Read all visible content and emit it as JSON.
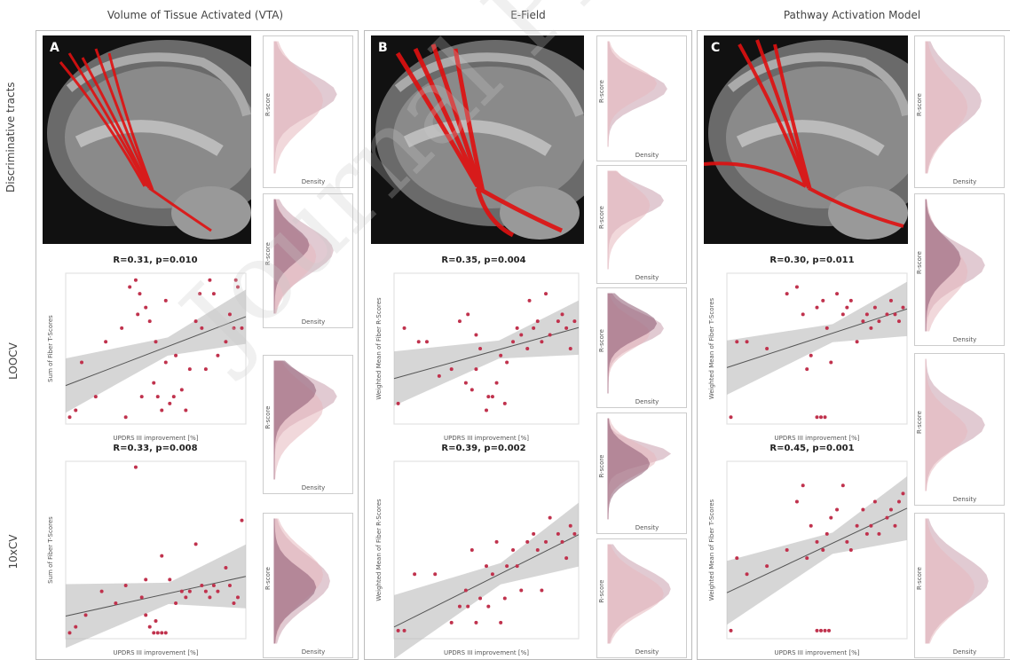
{
  "columns": [
    {
      "title": "Volume of Tissue Activated (VTA)",
      "letter": "A"
    },
    {
      "title": "E-Field",
      "letter": "B"
    },
    {
      "title": "Pathway Activation Model",
      "letter": "C"
    }
  ],
  "rows": {
    "discriminative": "Discriminative tracts",
    "loocv": "LOOCV",
    "tenfold": "10xCV"
  },
  "colors": {
    "points": "#c0324d",
    "fit_line": "#555555",
    "ci_band": "#bbbbbb",
    "tract": "#e01010",
    "density_a": "#c9a0ae",
    "density_b": "#e7b9bf",
    "density_c": "#8e5a73"
  },
  "density_texts": {
    "ylabel": "R-score",
    "xlabel": "Density"
  },
  "watermark": "Journal Pre-proof",
  "chart_data": [
    {
      "type": "scatter",
      "panel": "A-LOOCV",
      "title": "R=0.31, p=0.010",
      "xlabel": "UPDRS III improvement [%]",
      "ylabel": "Sum of Fiber T-Scores",
      "xlim": [
        -10,
        80
      ],
      "ylim": [
        0,
        110
      ],
      "x": [
        -8,
        -5,
        -2,
        5,
        10,
        18,
        22,
        25,
        27,
        28,
        30,
        32,
        35,
        36,
        40,
        42,
        45,
        48,
        50,
        52,
        55,
        57,
        58,
        60,
        62,
        64,
        66,
        70,
        72,
        74,
        75,
        76,
        78,
        40,
        44,
        34,
        38,
        20,
        26
      ],
      "y": [
        5,
        10,
        45,
        20,
        60,
        70,
        100,
        105,
        95,
        20,
        85,
        75,
        60,
        20,
        90,
        15,
        50,
        25,
        10,
        40,
        75,
        95,
        70,
        40,
        105,
        95,
        50,
        60,
        80,
        70,
        105,
        100,
        70,
        45,
        20,
        30,
        10,
        5,
        80
      ]
    },
    {
      "type": "scatter",
      "panel": "B-LOOCV",
      "title": "R=0.35, p=0.004",
      "xlabel": "UPDRS III improvement [%]",
      "ylabel": "Weighted Mean of Fiber R-Scores",
      "xlim": [
        -10,
        80
      ],
      "ylim": [
        0,
        110
      ],
      "x": [
        -8,
        -5,
        2,
        6,
        12,
        18,
        22,
        25,
        28,
        30,
        32,
        35,
        38,
        40,
        42,
        45,
        48,
        50,
        52,
        55,
        58,
        60,
        62,
        64,
        66,
        70,
        72,
        74,
        76,
        78,
        36,
        44,
        30,
        26,
        56
      ],
      "y": [
        15,
        70,
        60,
        60,
        35,
        40,
        75,
        30,
        25,
        40,
        55,
        10,
        20,
        30,
        50,
        45,
        60,
        70,
        65,
        55,
        70,
        75,
        60,
        95,
        65,
        75,
        80,
        70,
        55,
        75,
        20,
        15,
        65,
        80,
        90
      ]
    },
    {
      "type": "scatter",
      "panel": "C-LOOCV",
      "title": "R=0.30, p=0.011",
      "xlabel": "UPDRS III improvement [%]",
      "ylabel": "Weighted Mean of Fiber T-Scores",
      "xlim": [
        -10,
        80
      ],
      "ylim": [
        0,
        110
      ],
      "x": [
        -8,
        -5,
        0,
        10,
        20,
        25,
        28,
        30,
        32,
        35,
        38,
        40,
        42,
        45,
        48,
        50,
        52,
        55,
        58,
        60,
        62,
        64,
        66,
        70,
        72,
        74,
        76,
        78,
        35,
        37,
        39
      ],
      "y": [
        5,
        60,
        60,
        55,
        95,
        100,
        80,
        40,
        50,
        85,
        90,
        70,
        45,
        95,
        80,
        85,
        90,
        60,
        75,
        80,
        70,
        85,
        75,
        80,
        90,
        80,
        75,
        85,
        5,
        5,
        5
      ]
    },
    {
      "type": "scatter",
      "panel": "A-10xCV",
      "title": "R=0.33, p=0.008",
      "xlabel": "UPDRS III improvement [%]",
      "ylabel": "Sum of Fiber T-Scores",
      "xlim": [
        -10,
        80
      ],
      "ylim": [
        0,
        150
      ],
      "x": [
        -8,
        -5,
        0,
        8,
        15,
        20,
        25,
        28,
        30,
        32,
        35,
        38,
        40,
        42,
        45,
        48,
        50,
        52,
        55,
        58,
        60,
        62,
        64,
        66,
        70,
        72,
        74,
        76,
        78,
        34,
        36,
        38,
        30
      ],
      "y": [
        5,
        10,
        20,
        40,
        30,
        45,
        145,
        35,
        50,
        10,
        15,
        70,
        5,
        50,
        30,
        40,
        35,
        40,
        80,
        45,
        40,
        35,
        45,
        40,
        60,
        45,
        30,
        35,
        100,
        5,
        5,
        5,
        20
      ]
    },
    {
      "type": "scatter",
      "panel": "B-10xCV",
      "title": "R=0.39, p=0.002",
      "xlabel": "UPDRS III improvement [%]",
      "ylabel": "Weighted Mean of Fiber R-Scores",
      "xlim": [
        -10,
        80
      ],
      "ylim": [
        0,
        110
      ],
      "x": [
        -8,
        -5,
        0,
        10,
        18,
        22,
        25,
        28,
        30,
        32,
        35,
        38,
        40,
        42,
        45,
        48,
        50,
        52,
        55,
        58,
        60,
        62,
        64,
        66,
        70,
        72,
        74,
        76,
        78,
        36,
        44,
        26
      ],
      "y": [
        5,
        5,
        40,
        40,
        10,
        20,
        30,
        55,
        10,
        25,
        45,
        40,
        60,
        10,
        45,
        55,
        45,
        30,
        60,
        65,
        55,
        30,
        60,
        75,
        65,
        60,
        50,
        70,
        65,
        20,
        25,
        20
      ]
    },
    {
      "type": "scatter",
      "panel": "C-10xCV",
      "title": "R=0.45, p=0.001",
      "xlabel": "UPDRS III improvement [%]",
      "ylabel": "Weighted Mean of Fiber T-Scores",
      "xlim": [
        -10,
        80
      ],
      "ylim": [
        0,
        110
      ],
      "x": [
        -8,
        -5,
        0,
        10,
        20,
        25,
        28,
        30,
        32,
        35,
        38,
        40,
        42,
        45,
        48,
        50,
        52,
        55,
        58,
        60,
        62,
        64,
        66,
        70,
        72,
        74,
        76,
        78,
        35,
        37,
        39,
        41
      ],
      "y": [
        5,
        50,
        40,
        45,
        55,
        85,
        95,
        50,
        70,
        60,
        55,
        65,
        75,
        80,
        95,
        60,
        55,
        70,
        80,
        65,
        70,
        85,
        65,
        75,
        80,
        70,
        85,
        90,
        5,
        5,
        5,
        5
      ]
    }
  ]
}
